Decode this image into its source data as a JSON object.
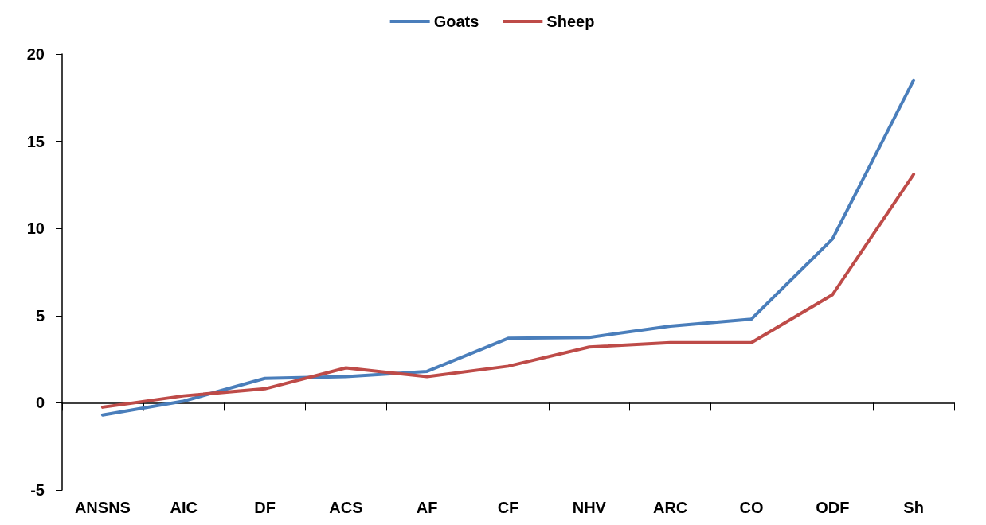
{
  "chart_data": {
    "type": "line",
    "categories": [
      "ANSNS",
      "AIC",
      "DF",
      "ACS",
      "AF",
      "CF",
      "NHV",
      "ARC",
      "CO",
      "ODF",
      "Sh"
    ],
    "series": [
      {
        "name": "Goats",
        "color": "#4a7ebb",
        "values": [
          -0.7,
          0.1,
          1.4,
          1.5,
          1.8,
          3.7,
          3.75,
          4.4,
          4.8,
          9.4,
          18.5
        ]
      },
      {
        "name": "Sheep",
        "color": "#be4b48",
        "values": [
          -0.25,
          0.4,
          0.8,
          2.0,
          1.5,
          2.1,
          3.2,
          3.45,
          3.45,
          6.2,
          13.1
        ]
      }
    ],
    "ylim": [
      -5,
      20
    ],
    "yticks": [
      -5,
      0,
      5,
      10,
      15,
      20
    ],
    "legend": "top",
    "marker": "none",
    "line_style": "solid"
  }
}
